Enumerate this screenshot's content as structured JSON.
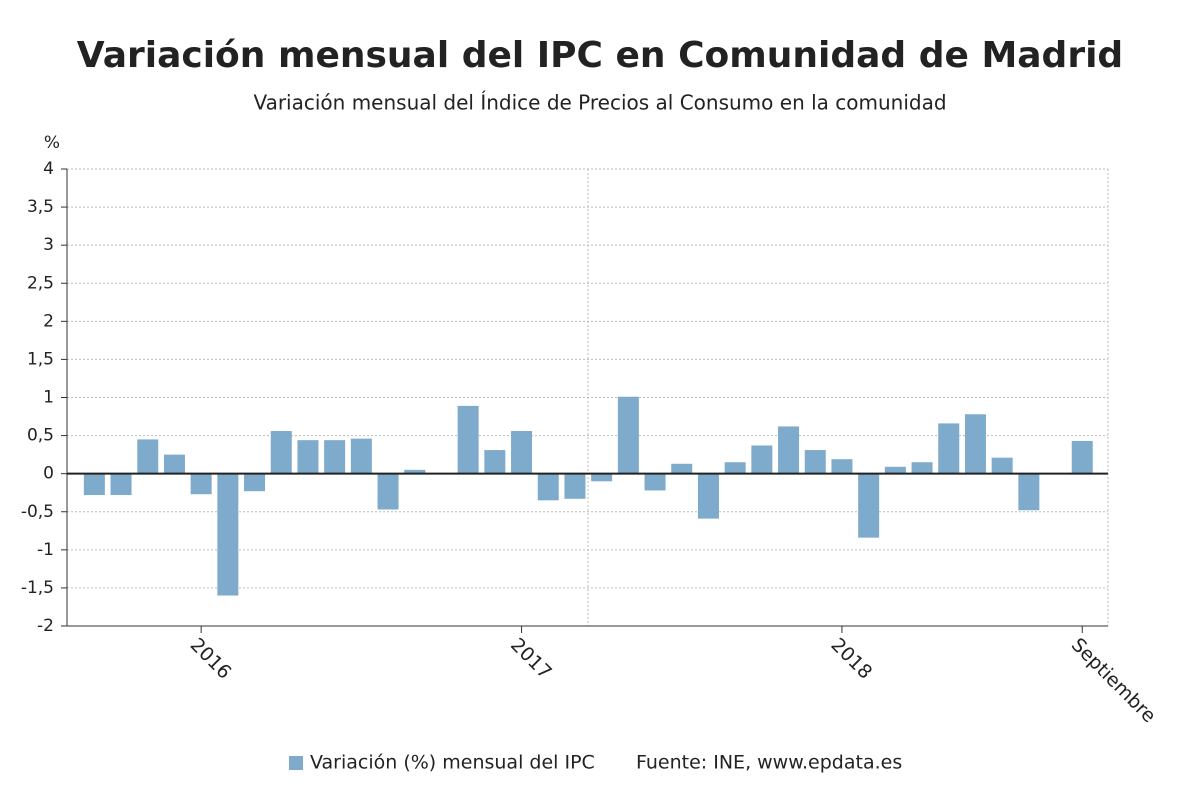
{
  "chart_data": {
    "type": "bar",
    "title": "Variación mensual del IPC en Comunidad de Madrid",
    "subtitle": "Variación mensual del Índice de Precios al Consumo en la comunidad",
    "y_label": "%",
    "source": "Fuente: INE, www.epdata.es",
    "categories": [
      null,
      null,
      null,
      null,
      "2016",
      null,
      null,
      null,
      null,
      null,
      null,
      null,
      null,
      null,
      null,
      null,
      "2017",
      null,
      null,
      null,
      null,
      null,
      null,
      null,
      null,
      null,
      null,
      null,
      "2018",
      null,
      null,
      null,
      null,
      null,
      null,
      null,
      null,
      "Septiembre"
    ],
    "series": [
      {
        "name": "Variación (%) mensual del IPC",
        "color": "#7eaacb",
        "values": [
          -0.28,
          -0.28,
          0.45,
          0.25,
          -0.27,
          -1.6,
          -0.23,
          0.56,
          0.44,
          0.44,
          0.46,
          -0.47,
          0.05,
          0.01,
          0.89,
          0.31,
          0.56,
          -0.35,
          -0.33,
          -0.1,
          1.01,
          -0.22,
          0.13,
          -0.59,
          0.15,
          0.37,
          0.62,
          0.31,
          0.19,
          -0.84,
          0.09,
          0.15,
          0.66,
          0.78,
          0.21,
          -0.48,
          0.0,
          0.43
        ]
      }
    ],
    "ylim": [
      -2,
      4
    ],
    "yticks": [
      {
        "value": -2,
        "label": "-2"
      },
      {
        "value": -1.5,
        "label": "-1,5"
      },
      {
        "value": -1,
        "label": "-1"
      },
      {
        "value": -0.5,
        "label": "-0,5"
      },
      0,
      {
        "value": 0.5,
        "label": "0,5"
      },
      1,
      {
        "value": 1.5,
        "label": "1,5"
      },
      2,
      {
        "value": 2.5,
        "label": "2,5"
      },
      3,
      {
        "value": 3.5,
        "label": "3,5"
      },
      4
    ],
    "grid": true
  }
}
